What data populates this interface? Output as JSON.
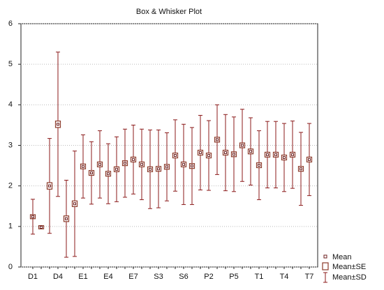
{
  "chart_data": {
    "type": "box",
    "title": "Box & Whisker Plot",
    "categories": [
      "D1",
      null,
      null,
      "D4",
      null,
      null,
      "E1",
      null,
      null,
      "E4",
      null,
      null,
      "E7",
      null,
      null,
      "S3",
      null,
      null,
      "S6",
      null,
      null,
      "P2",
      null,
      null,
      "P5",
      null,
      null,
      "T1",
      null,
      null,
      "T4",
      null,
      null,
      "T7"
    ],
    "series": [
      {
        "name": "Mean",
        "color": "#6b1c1c",
        "values": [
          1.24,
          0.98,
          2.0,
          3.52,
          1.19,
          1.56,
          2.48,
          2.32,
          2.53,
          2.3,
          2.41,
          2.56,
          2.65,
          2.53,
          2.41,
          2.42,
          2.47,
          2.75,
          2.53,
          2.49,
          2.82,
          2.75,
          3.14,
          2.82,
          2.78,
          3.0,
          2.85,
          2.51,
          2.77,
          2.77,
          2.7,
          2.77,
          2.42,
          2.65
        ]
      },
      {
        "name": "Mean±SE",
        "color": "#8b3a2a",
        "values": [
          0.05,
          0.04,
          0.08,
          0.08,
          0.07,
          0.07,
          0.06,
          0.06,
          0.06,
          0.06,
          0.06,
          0.06,
          0.06,
          0.06,
          0.06,
          0.06,
          0.06,
          0.06,
          0.06,
          0.06,
          0.06,
          0.06,
          0.06,
          0.06,
          0.06,
          0.06,
          0.06,
          0.06,
          0.06,
          0.06,
          0.06,
          0.06,
          0.06,
          0.06
        ]
      },
      {
        "name": "Mean±SD",
        "color": "#8b1a1a",
        "values": [
          0.43,
          0,
          1.17,
          1.78,
          0.95,
          1.3,
          0.78,
          0.77,
          0.83,
          0.74,
          0.8,
          0.84,
          0.85,
          0.87,
          0.97,
          0.96,
          0.84,
          0.88,
          0.99,
          0.95,
          0.92,
          0.86,
          0.86,
          0.94,
          0.92,
          0.89,
          0.83,
          0.85,
          0.82,
          0.82,
          0.84,
          0.83,
          0.9,
          0.89
        ]
      }
    ],
    "ylim": [
      0,
      6
    ],
    "yticks": [
      0,
      1,
      2,
      3,
      4,
      5,
      6
    ],
    "grid": true
  }
}
